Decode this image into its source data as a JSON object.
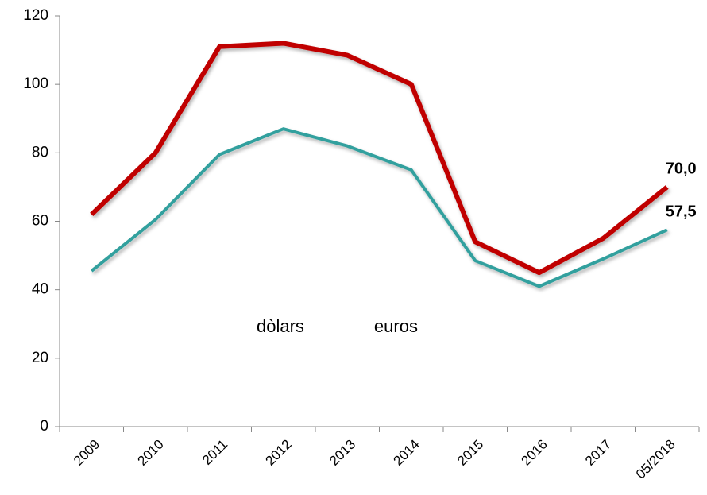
{
  "chart_data": {
    "type": "line",
    "categories": [
      "2009",
      "2010",
      "2011",
      "2012",
      "2013",
      "2014",
      "2015",
      "2016",
      "2017",
      "05/2018"
    ],
    "series": [
      {
        "name": "dòlars",
        "color": "#c00000",
        "values": [
          62,
          80,
          111,
          112,
          108.5,
          100,
          54,
          45,
          55,
          70
        ],
        "value_labels": [
          null,
          null,
          null,
          null,
          null,
          null,
          null,
          null,
          null,
          "70,0"
        ]
      },
      {
        "name": "euros",
        "color": "#31a09e",
        "values": [
          45.5,
          60.5,
          79.5,
          87,
          82,
          75,
          48.5,
          41,
          49,
          57.5
        ],
        "value_labels": [
          null,
          null,
          null,
          null,
          null,
          null,
          null,
          null,
          null,
          "57,5"
        ]
      }
    ],
    "ylim": [
      0,
      120
    ],
    "yticks": [
      0,
      20,
      40,
      60,
      80,
      100,
      120
    ],
    "grid": false,
    "legend": "center"
  }
}
